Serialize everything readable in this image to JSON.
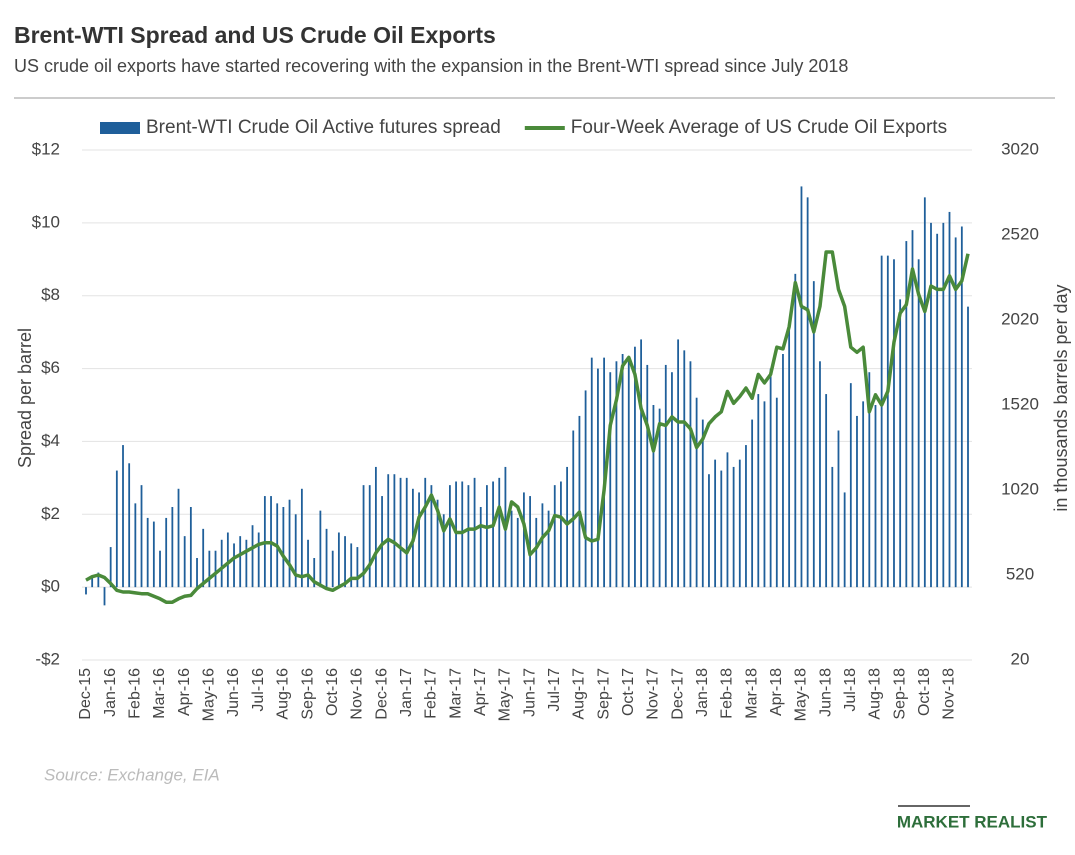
{
  "chart_data": {
    "type": "bar-line",
    "title": "Brent-WTI Spread and US Crude Oil Exports",
    "subtitle": "US crude oil exports  have started recovering with the expansion in the Brent-WTI spread since July 2018",
    "y_label": "Spread per barrel",
    "y2_label": "in thousands barrels per day",
    "source": "Source: Exchange, EIA",
    "brand": "MARKET REALIST",
    "categories": [
      "Dec-15",
      null,
      null,
      null,
      "Jan-16",
      null,
      null,
      null,
      "Feb-16",
      null,
      null,
      null,
      "Mar-16",
      null,
      null,
      null,
      "Apr-16",
      null,
      null,
      null,
      "May-16",
      null,
      null,
      null,
      "Jun-16",
      null,
      null,
      null,
      "Jul-16",
      null,
      null,
      null,
      "Aug-16",
      null,
      null,
      null,
      "Sep-16",
      null,
      null,
      null,
      "Oct-16",
      null,
      null,
      null,
      "Nov-16",
      null,
      null,
      null,
      "Dec-16",
      null,
      null,
      null,
      "Jan-17",
      null,
      null,
      null,
      "Feb-17",
      null,
      null,
      null,
      "Mar-17",
      null,
      null,
      null,
      "Apr-17",
      null,
      null,
      null,
      "May-17",
      null,
      null,
      null,
      "Jun-17",
      null,
      null,
      null,
      "Jul-17",
      null,
      null,
      null,
      "Aug-17",
      null,
      null,
      null,
      "Sep-17",
      null,
      null,
      null,
      "Oct-17",
      null,
      null,
      null,
      "Nov-17",
      null,
      null,
      null,
      "Dec-17",
      null,
      null,
      null,
      "Jan-18",
      null,
      null,
      null,
      "Feb-18",
      null,
      null,
      null,
      "Mar-18",
      null,
      null,
      null,
      "Apr-18",
      null,
      null,
      null,
      "May-18",
      null,
      null,
      null,
      "Jun-18",
      null,
      null,
      null,
      "Jul-18",
      null,
      null,
      null,
      "Aug-18",
      null,
      null,
      null,
      "Sep-18",
      null,
      null,
      null,
      "Oct-18",
      null,
      null,
      null,
      "Nov-18",
      null,
      null,
      null
    ],
    "series": [
      {
        "name": "Brent-WTI Crude Oil Active futures spread",
        "type": "bar",
        "color": "#1f5f9a",
        "values": [
          -0.2,
          0.3,
          0.4,
          -0.5,
          1.1,
          3.2,
          3.9,
          3.4,
          2.3,
          2.8,
          1.9,
          1.8,
          1.0,
          1.9,
          2.2,
          2.7,
          1.4,
          2.2,
          0.8,
          1.6,
          1.0,
          1.0,
          1.3,
          1.5,
          1.2,
          1.4,
          1.3,
          1.7,
          1.5,
          2.5,
          2.5,
          2.3,
          2.2,
          2.4,
          2.0,
          2.7,
          1.3,
          0.8,
          2.1,
          1.6,
          1.0,
          1.5,
          1.4,
          1.2,
          1.1,
          2.8,
          2.8,
          3.3,
          2.5,
          3.1,
          3.1,
          3.0,
          3.0,
          2.7,
          2.6,
          3.0,
          2.8,
          2.4,
          2.0,
          2.8,
          2.9,
          2.9,
          2.8,
          3.0,
          2.2,
          2.8,
          2.9,
          3.0,
          3.3,
          2.1,
          1.9,
          2.6,
          2.5,
          1.9,
          2.3,
          2.1,
          2.8,
          2.9,
          3.3,
          4.3,
          4.7,
          5.4,
          6.3,
          6.0,
          6.3,
          5.9,
          6.2,
          6.4,
          6.3,
          6.6,
          6.8,
          6.1,
          5.0,
          4.9,
          6.1,
          5.9,
          6.8,
          6.5,
          6.2,
          5.2,
          4.6,
          3.1,
          3.5,
          3.2,
          3.7,
          3.3,
          3.5,
          3.9,
          4.6,
          5.3,
          5.1,
          6.0,
          5.2,
          6.4,
          7.2,
          8.6,
          11.0,
          10.7,
          8.4,
          6.2,
          5.3,
          3.3,
          4.3,
          2.6,
          5.6,
          4.7,
          5.1,
          5.9,
          5.0,
          9.1,
          9.1,
          9.0,
          7.9,
          9.5,
          9.8,
          9.0,
          10.7,
          10.0,
          9.7,
          10.0,
          10.3,
          9.6,
          9.9,
          7.7
        ]
      },
      {
        "name": "Four-Week Average of US Crude Oil Exports",
        "type": "line",
        "axis": "y2",
        "color": "#4a8a3a",
        "values": [
          490,
          510,
          520,
          505,
          470,
          430,
          420,
          420,
          415,
          410,
          410,
          395,
          380,
          360,
          360,
          380,
          395,
          400,
          440,
          470,
          500,
          530,
          560,
          590,
          620,
          640,
          660,
          680,
          700,
          710,
          710,
          690,
          630,
          580,
          520,
          510,
          520,
          480,
          460,
          440,
          430,
          450,
          470,
          500,
          500,
          530,
          580,
          650,
          700,
          730,
          710,
          680,
          650,
          720,
          860,
          920,
          990,
          900,
          780,
          850,
          770,
          770,
          790,
          790,
          810,
          800,
          810,
          920,
          790,
          950,
          920,
          820,
          640,
          680,
          740,
          780,
          870,
          860,
          820,
          850,
          890,
          740,
          720,
          730,
          1020,
          1400,
          1550,
          1750,
          1800,
          1700,
          1500,
          1400,
          1250,
          1410,
          1400,
          1450,
          1420,
          1420,
          1380,
          1270,
          1320,
          1410,
          1450,
          1480,
          1600,
          1530,
          1570,
          1620,
          1560,
          1700,
          1650,
          1700,
          1860,
          1850,
          1980,
          2240,
          2100,
          2080,
          1950,
          2100,
          2420,
          2420,
          2200,
          2100,
          1860,
          1830,
          1860,
          1480,
          1580,
          1520,
          1600,
          1890,
          2060,
          2110,
          2320,
          2170,
          2070,
          2220,
          2200,
          2200,
          2280,
          2200,
          2250,
          2410
        ]
      }
    ],
    "ylim": [
      -2,
      12
    ],
    "yticks": [
      {
        "value": -2,
        "label": "-$2"
      },
      {
        "value": 0,
        "label": "$0"
      },
      {
        "value": 2,
        "label": "$2"
      },
      {
        "value": 4,
        "label": "$4"
      },
      {
        "value": 6,
        "label": "$6"
      },
      {
        "value": 8,
        "label": "$8"
      },
      {
        "value": 10,
        "label": "$10"
      },
      {
        "value": 12,
        "label": "$12"
      }
    ],
    "y2lim": [
      20,
      3020
    ],
    "y2ticks": [
      20,
      520,
      1020,
      1520,
      2020,
      2520,
      3020
    ],
    "grid": true
  }
}
